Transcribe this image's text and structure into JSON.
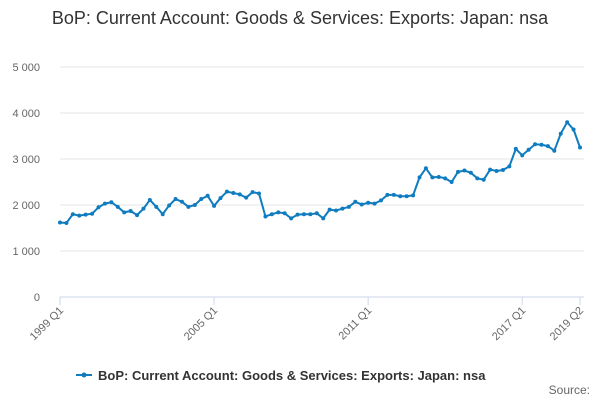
{
  "chart_data": {
    "type": "line",
    "title": "BoP: Current Account: Goods & Services: Exports: Japan: nsa",
    "source": "Source:",
    "categories": [
      "1999 Q1",
      null,
      null,
      null,
      null,
      null,
      null,
      null,
      null,
      null,
      null,
      null,
      null,
      null,
      null,
      null,
      null,
      null,
      null,
      null,
      null,
      null,
      null,
      null,
      "2005 Q1",
      null,
      null,
      null,
      null,
      null,
      null,
      null,
      null,
      null,
      null,
      null,
      null,
      null,
      null,
      null,
      null,
      null,
      null,
      null,
      null,
      null,
      null,
      null,
      "2011 Q1",
      null,
      null,
      null,
      null,
      null,
      null,
      null,
      null,
      null,
      null,
      null,
      null,
      null,
      null,
      null,
      null,
      null,
      null,
      null,
      null,
      null,
      null,
      null,
      "2017 Q1",
      null,
      null,
      null,
      null,
      null,
      null,
      null,
      null,
      "2019 Q2"
    ],
    "series": [
      {
        "name": "BoP: Current Account: Goods & Services: Exports: Japan: nsa",
        "color": "#0f7cbf",
        "values": [
          1620,
          1610,
          1800,
          1770,
          1790,
          1810,
          1950,
          2030,
          2060,
          1960,
          1840,
          1870,
          1780,
          1920,
          2110,
          1960,
          1800,
          1990,
          2130,
          2070,
          1960,
          2000,
          2130,
          2200,
          1980,
          2150,
          2290,
          2260,
          2230,
          2160,
          2280,
          2250,
          1750,
          1800,
          1840,
          1820,
          1710,
          1790,
          1800,
          1800,
          1820,
          1710,
          1900,
          1880,
          1920,
          1960,
          2070,
          2010,
          2050,
          2030,
          2100,
          2220,
          2220,
          2190,
          2190,
          2210,
          2600,
          2800,
          2600,
          2610,
          2580,
          2500,
          2720,
          2750,
          2700,
          2580,
          2550,
          2770,
          2740,
          2760,
          2840,
          3220,
          3080,
          3200,
          3320,
          3310,
          3280,
          3180,
          3550,
          3800,
          3640,
          3250
        ]
      }
    ],
    "ylim": [
      0,
      5000
    ],
    "yticks": [
      0,
      {
        "value": 1000,
        "label": "1 000"
      },
      {
        "value": 2000,
        "label": "2 000"
      },
      {
        "value": 3000,
        "label": "3 000"
      },
      {
        "value": 4000,
        "label": "4 000"
      },
      {
        "value": 5000,
        "label": "5 000"
      }
    ],
    "grid": true
  }
}
